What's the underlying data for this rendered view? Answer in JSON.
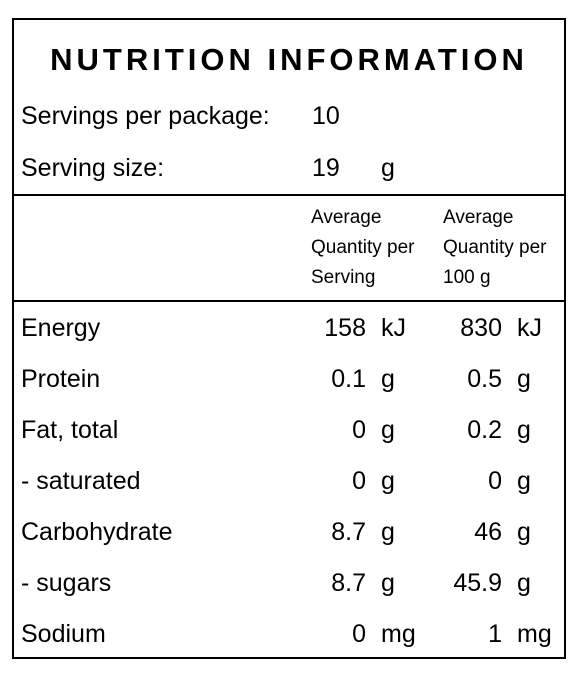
{
  "title": "NUTRITION INFORMATION",
  "servings": {
    "label": "Servings per package:",
    "value": "10"
  },
  "serving_size": {
    "label": "Serving size:",
    "value": "19",
    "unit": "g"
  },
  "columns": {
    "per_serving": [
      "Average",
      "Quantity per",
      "Serving"
    ],
    "per_100g": [
      "Average",
      "Quantity per",
      "100 g"
    ]
  },
  "rows": [
    {
      "name": "Energy",
      "serving": "158",
      "serving_unit": "kJ",
      "per100": "830",
      "per100_unit": "kJ"
    },
    {
      "name": "Protein",
      "serving": "0.1",
      "serving_unit": "g",
      "per100": "0.5",
      "per100_unit": "g"
    },
    {
      "name": "Fat, total",
      "serving": "0",
      "serving_unit": "g",
      "per100": "0.2",
      "per100_unit": "g"
    },
    {
      "name": "- saturated",
      "serving": "0",
      "serving_unit": "g",
      "per100": "0",
      "per100_unit": "g"
    },
    {
      "name": "Carbohydrate",
      "serving": "8.7",
      "serving_unit": "g",
      "per100": "46",
      "per100_unit": "g"
    },
    {
      "name": "- sugars",
      "serving": "8.7",
      "serving_unit": "g",
      "per100": "45.9",
      "per100_unit": "g"
    },
    {
      "name": "Sodium",
      "serving": "0",
      "serving_unit": "mg",
      "per100": "1",
      "per100_unit": "mg"
    }
  ]
}
